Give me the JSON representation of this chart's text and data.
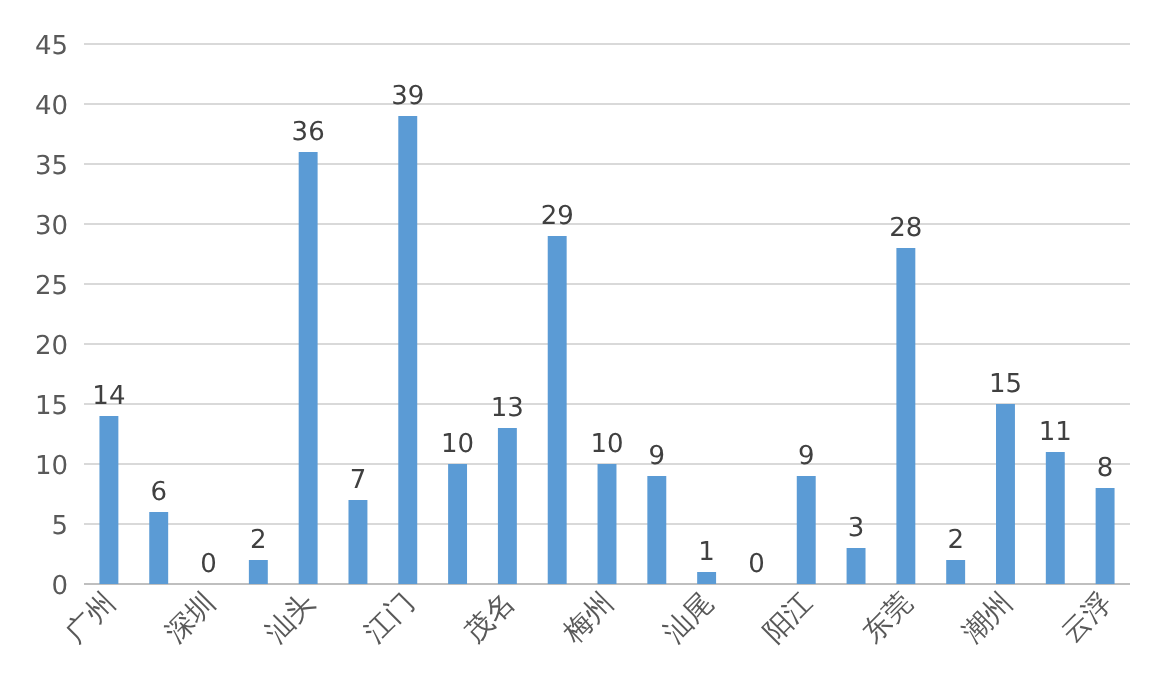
{
  "chart_data": {
    "type": "bar",
    "categories": [
      "广州",
      null,
      "深圳",
      null,
      "汕头",
      null,
      "江门",
      null,
      "茂名",
      null,
      "梅州",
      null,
      "汕尾",
      null,
      "阳江",
      null,
      "东莞",
      null,
      "潮州",
      null,
      "云浮"
    ],
    "values": [
      14,
      6,
      0,
      2,
      36,
      7,
      39,
      10,
      13,
      29,
      10,
      9,
      1,
      0,
      9,
      3,
      28,
      2,
      15,
      11,
      8
    ],
    "color": "#5b9bd5",
    "ylim": [
      0,
      45
    ],
    "yticks": [
      0,
      5,
      10,
      15,
      20,
      25,
      30,
      35,
      40,
      45
    ],
    "grid": "y",
    "data_labels": true
  }
}
